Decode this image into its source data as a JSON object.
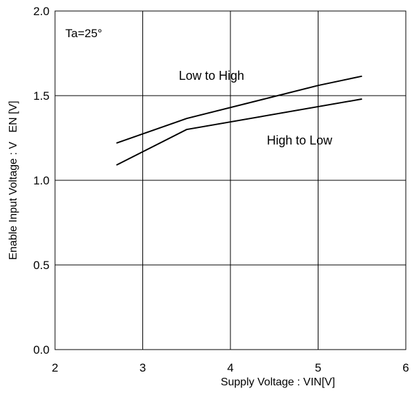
{
  "chart_data": {
    "type": "line",
    "title": "",
    "xlabel": "Supply Voltage : VIN[V]",
    "ylabel": "Enable Input Voltage : V   EN [V]",
    "xlim": [
      2,
      6
    ],
    "ylim": [
      0.0,
      2.0
    ],
    "xticks": [
      2,
      3,
      4,
      5,
      6
    ],
    "yticks": [
      0.0,
      0.5,
      1.0,
      1.5,
      2.0
    ],
    "xtick_labels": [
      "2",
      "3",
      "4",
      "5",
      "6"
    ],
    "ytick_labels": [
      "0.0",
      "0.5",
      "1.0",
      "1.5",
      "2.0"
    ],
    "grid": true,
    "condition_label": "Ta=25°",
    "series": [
      {
        "name": "Low to High",
        "x": [
          2.7,
          3.5,
          5.0,
          5.5
        ],
        "y": [
          1.22,
          1.365,
          1.56,
          1.615
        ]
      },
      {
        "name": "High to Low",
        "x": [
          2.7,
          3.5,
          5.5
        ],
        "y": [
          1.09,
          1.3,
          1.48
        ]
      }
    ],
    "series_colors": [
      "#000000",
      "#000000"
    ],
    "line_color": "#000000",
    "grid_color": "#000000"
  }
}
